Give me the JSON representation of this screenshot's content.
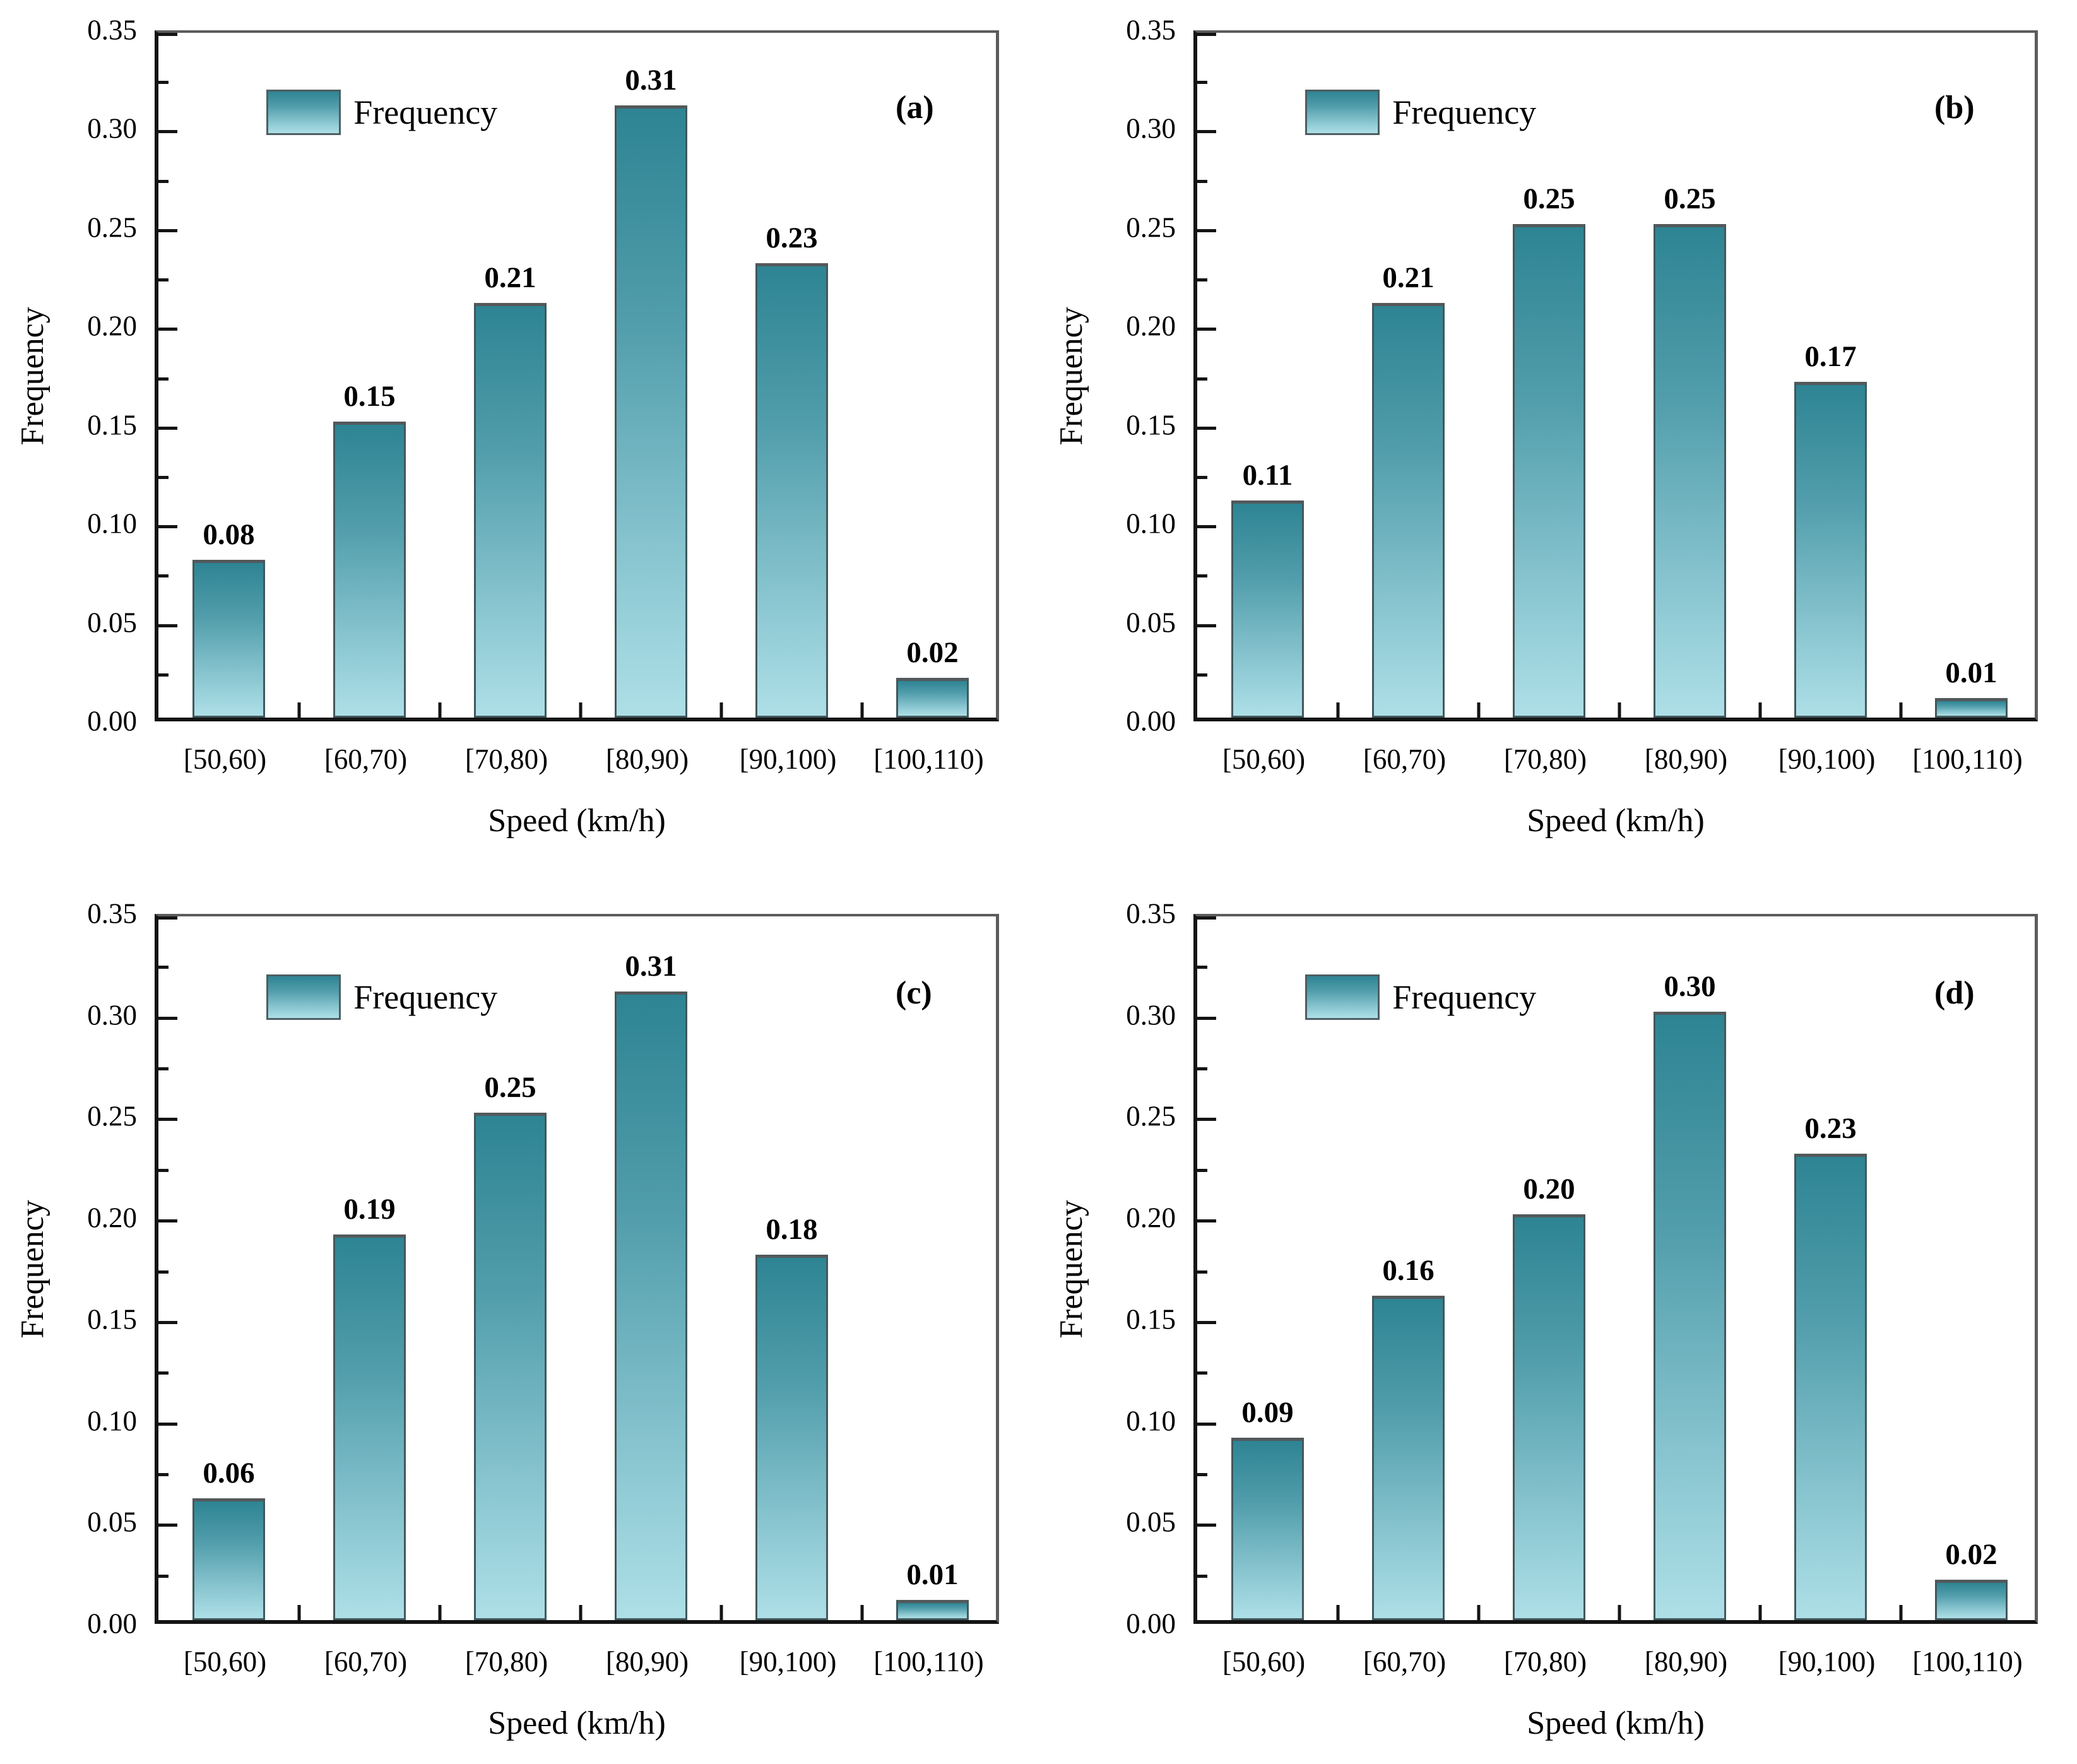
{
  "colors": {
    "bar_gradient_top": "#2e8493",
    "bar_gradient_bottom": "#aedfe7",
    "bar_border": "#41585c",
    "axis_line": "#141414",
    "frame_line": "#5c5c5c",
    "text": "#000000"
  },
  "chart_data": [
    {
      "type": "bar",
      "panel_label": "(a)",
      "legend": [
        "Frequency"
      ],
      "legend_position": "top-left",
      "xlabel": "Speed (km/h)",
      "ylabel": "Frequency",
      "categories": [
        "[50,60)",
        "[60,70)",
        "[70,80)",
        "[80,90)",
        "[90,100)",
        "[100,110)"
      ],
      "values": [
        0.08,
        0.15,
        0.21,
        0.31,
        0.23,
        0.02
      ],
      "value_labels": [
        "0.08",
        "0.15",
        "0.21",
        "0.31",
        "0.23",
        "0.02"
      ],
      "ylim": [
        0,
        0.35
      ],
      "ytick_labels": [
        "0.00",
        "0.05",
        "0.10",
        "0.15",
        "0.20",
        "0.25",
        "0.30",
        "0.35"
      ],
      "grid": "off"
    },
    {
      "type": "bar",
      "panel_label": "(b)",
      "legend": [
        "Frequency"
      ],
      "legend_position": "top-left",
      "xlabel": "Speed (km/h)",
      "ylabel": "Frequency",
      "categories": [
        "[50,60)",
        "[60,70)",
        "[70,80)",
        "[80,90)",
        "[90,100)",
        "[100,110)"
      ],
      "values": [
        0.11,
        0.21,
        0.25,
        0.25,
        0.17,
        0.01
      ],
      "value_labels": [
        "0.11",
        "0.21",
        "0.25",
        "0.25",
        "0.17",
        "0.01"
      ],
      "ylim": [
        0,
        0.35
      ],
      "ytick_labels": [
        "0.00",
        "0.05",
        "0.10",
        "0.15",
        "0.20",
        "0.25",
        "0.30",
        "0.35"
      ],
      "grid": "off"
    },
    {
      "type": "bar",
      "panel_label": "(c)",
      "legend": [
        "Frequency"
      ],
      "legend_position": "top-left",
      "xlabel": "Speed (km/h)",
      "ylabel": "Frequency",
      "categories": [
        "[50,60)",
        "[60,70)",
        "[70,80)",
        "[80,90)",
        "[90,100)",
        "[100,110)"
      ],
      "values": [
        0.06,
        0.19,
        0.25,
        0.31,
        0.18,
        0.01
      ],
      "value_labels": [
        "0.06",
        "0.19",
        "0.25",
        "0.31",
        "0.18",
        "0.01"
      ],
      "ylim": [
        0,
        0.35
      ],
      "ytick_labels": [
        "0.00",
        "0.05",
        "0.10",
        "0.15",
        "0.20",
        "0.25",
        "0.30",
        "0.35"
      ],
      "grid": "off"
    },
    {
      "type": "bar",
      "panel_label": "(d)",
      "legend": [
        "Frequency"
      ],
      "legend_position": "top-left",
      "xlabel": "Speed (km/h)",
      "ylabel": "Frequency",
      "categories": [
        "[50,60)",
        "[60,70)",
        "[70,80)",
        "[80,90)",
        "[90,100)",
        "[100,110)"
      ],
      "values": [
        0.09,
        0.16,
        0.2,
        0.3,
        0.23,
        0.02
      ],
      "value_labels": [
        "0.09",
        "0.16",
        "0.20",
        "0.30",
        "0.23",
        "0.02"
      ],
      "ylim": [
        0,
        0.35
      ],
      "ytick_labels": [
        "0.00",
        "0.05",
        "0.10",
        "0.15",
        "0.20",
        "0.25",
        "0.30",
        "0.35"
      ],
      "grid": "off"
    }
  ]
}
